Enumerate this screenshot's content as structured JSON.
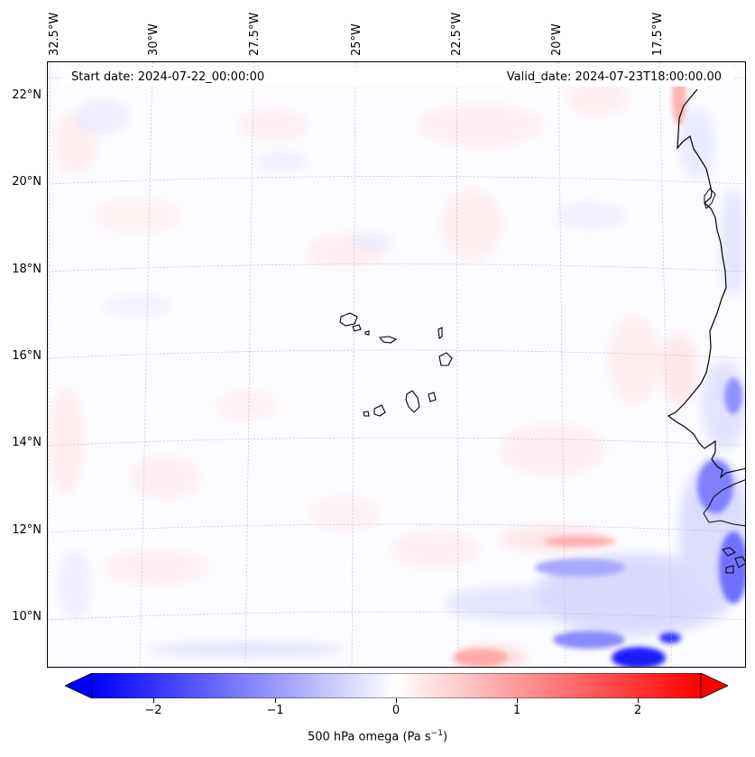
{
  "header": {
    "start_date": "Start date: 2024-07-22_00:00:00",
    "valid_date": "Valid_date: 2024-07-23T18:00:00.00"
  },
  "map": {
    "lon_labels": [
      "32.5°W",
      "30°W",
      "27.5°W",
      "25°W",
      "22.5°W",
      "20°W",
      "17.5°W"
    ],
    "lat_labels": [
      "22°N",
      "20°N",
      "18°N",
      "16°N",
      "14°N",
      "12°N",
      "10°N"
    ],
    "coastline_color": "#000000",
    "grid": true
  },
  "colorbar": {
    "ticks": [
      "−2",
      "−1",
      "0",
      "1",
      "2"
    ],
    "label_main": "500 hPa omega (Pa s",
    "label_sup": "−1",
    "label_end": ")",
    "min_color": "#0000ff",
    "mid_color": "#ffffff",
    "max_color": "#ff0000",
    "extend": "both"
  }
}
